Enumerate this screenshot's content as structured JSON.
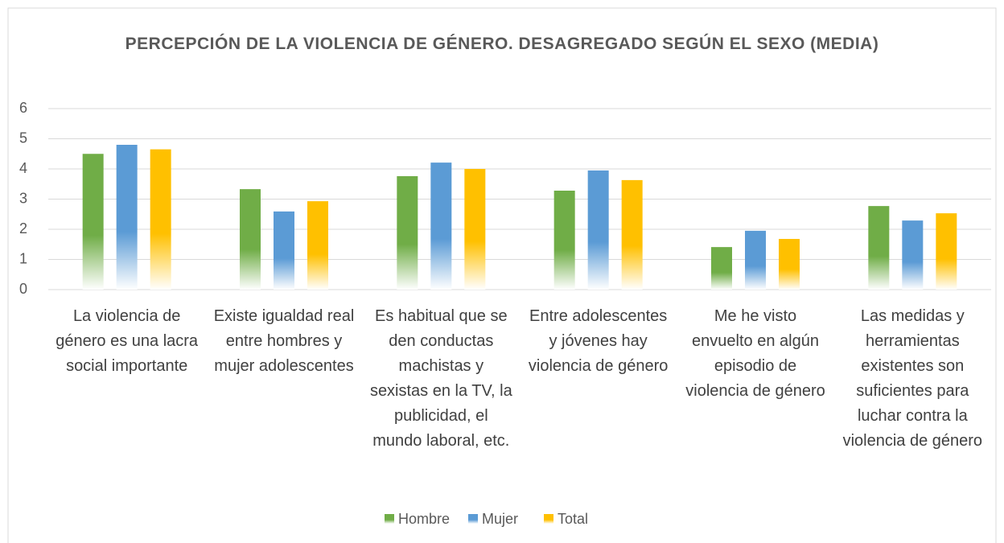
{
  "chart_data": {
    "type": "bar",
    "title": "PERCEPCIÓN DE LA VIOLENCIA DE GÉNERO. DESAGREGADO SEGÚN EL SEXO (MEDIA)",
    "categories": [
      "La violencia de género es una lacra social importante",
      "Existe igualdad real entre hombres y mujer adolescentes",
      "Es habitual que se den conductas machistas y sexistas en la TV, la publicidad, el mundo laboral, etc.",
      "Entre adolescentes y jóvenes hay violencia de género",
      "Me he visto envuelto en algún episodio de violencia de género",
      "Las medidas y herramientas existentes son suficientes para luchar contra la violencia de género"
    ],
    "series": [
      {
        "name": "Hombre",
        "color": "#70ad47",
        "values": [
          4.5,
          3.33,
          3.76,
          3.28,
          1.41,
          2.77
        ]
      },
      {
        "name": "Mujer",
        "color": "#5b9bd5",
        "values": [
          4.8,
          2.59,
          4.21,
          3.95,
          1.95,
          2.29
        ]
      },
      {
        "name": "Total",
        "color": "#ffc000",
        "values": [
          4.65,
          2.93,
          4.0,
          3.63,
          1.68,
          2.53
        ]
      }
    ],
    "ylim": [
      0,
      6
    ],
    "yticks": [
      0,
      1,
      2,
      3,
      4,
      5,
      6
    ],
    "grid": true,
    "legend": "bottom"
  }
}
